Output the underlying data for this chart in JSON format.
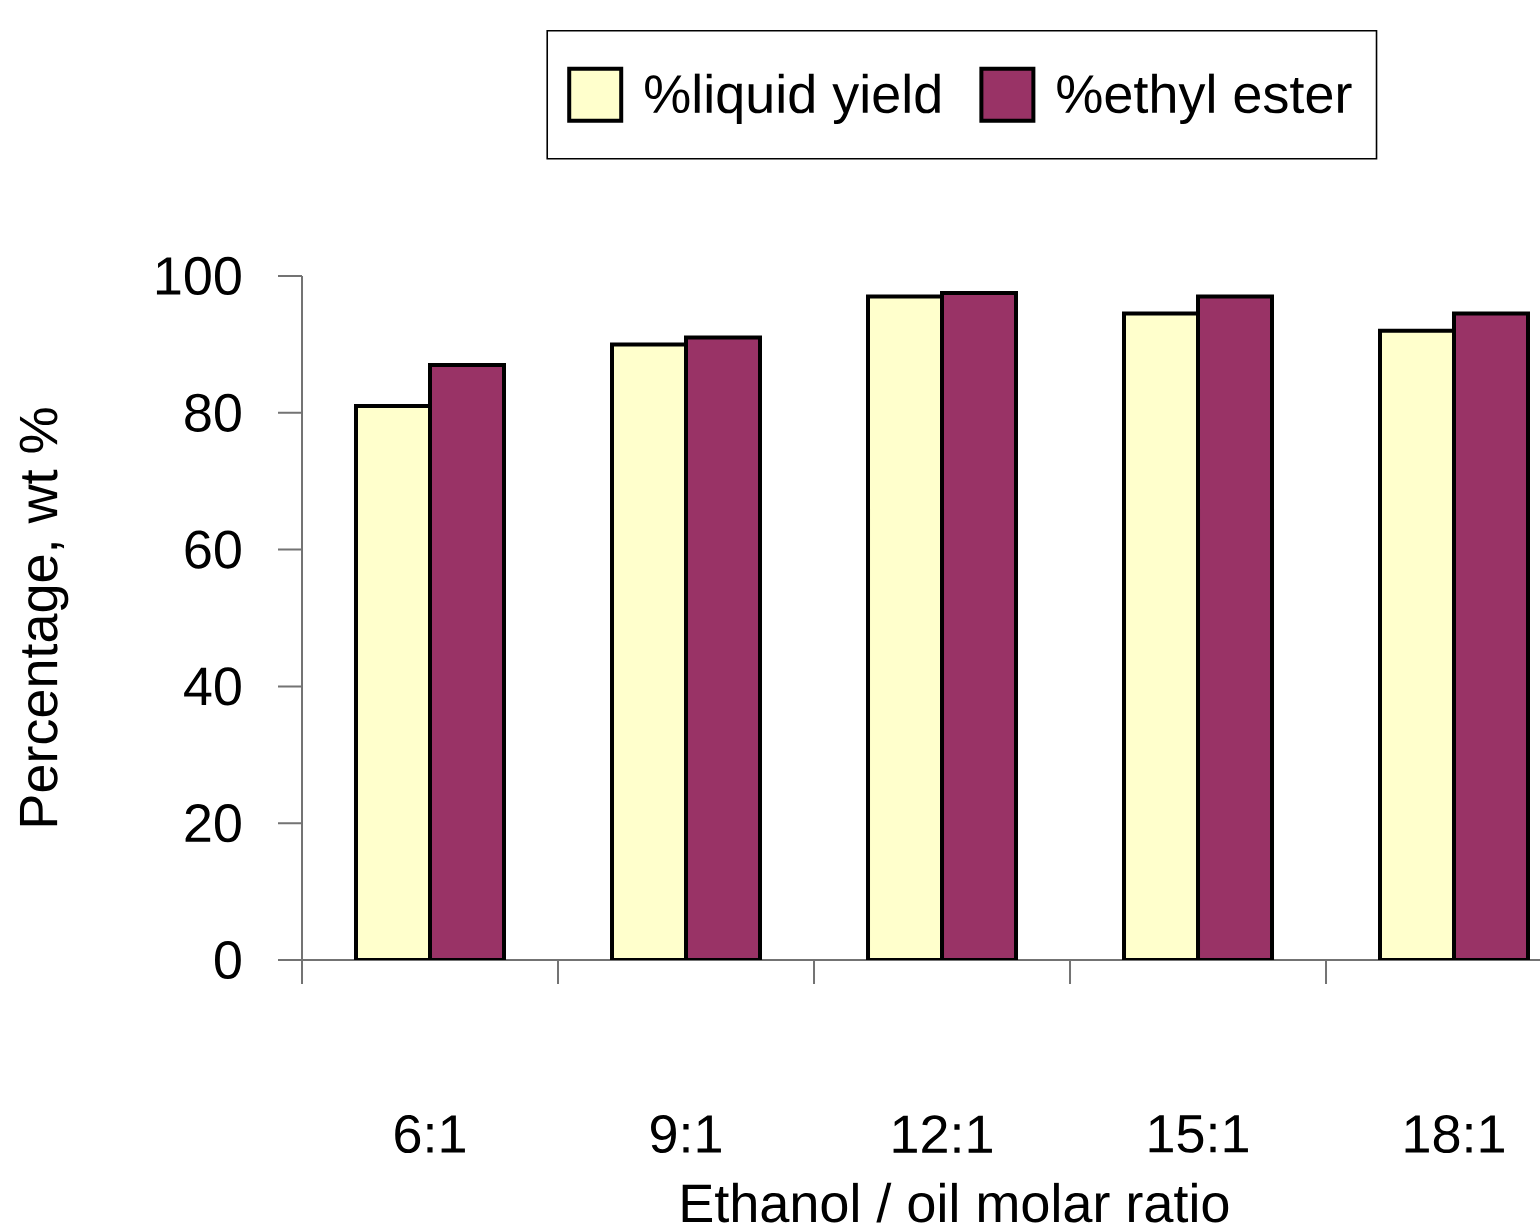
{
  "chart_data": {
    "type": "bar",
    "categories": [
      "6:1",
      "9:1",
      "12:1",
      "15:1",
      "18:1"
    ],
    "xlabel": "Ethanol / oil molar ratio",
    "ylabel": "Percentage, wt %",
    "series": [
      {
        "name": "%liquid yield",
        "color": "#ffffcc",
        "values": [
          81,
          90,
          97,
          94.5,
          92
        ]
      },
      {
        "name": "%ethyl ester",
        "color": "#993366",
        "values": [
          87,
          91,
          97.5,
          97,
          94.5
        ]
      }
    ],
    "ylim": [
      0,
      100
    ],
    "yticks": [
      0,
      20,
      40,
      60,
      80,
      100
    ],
    "legend": "top"
  }
}
